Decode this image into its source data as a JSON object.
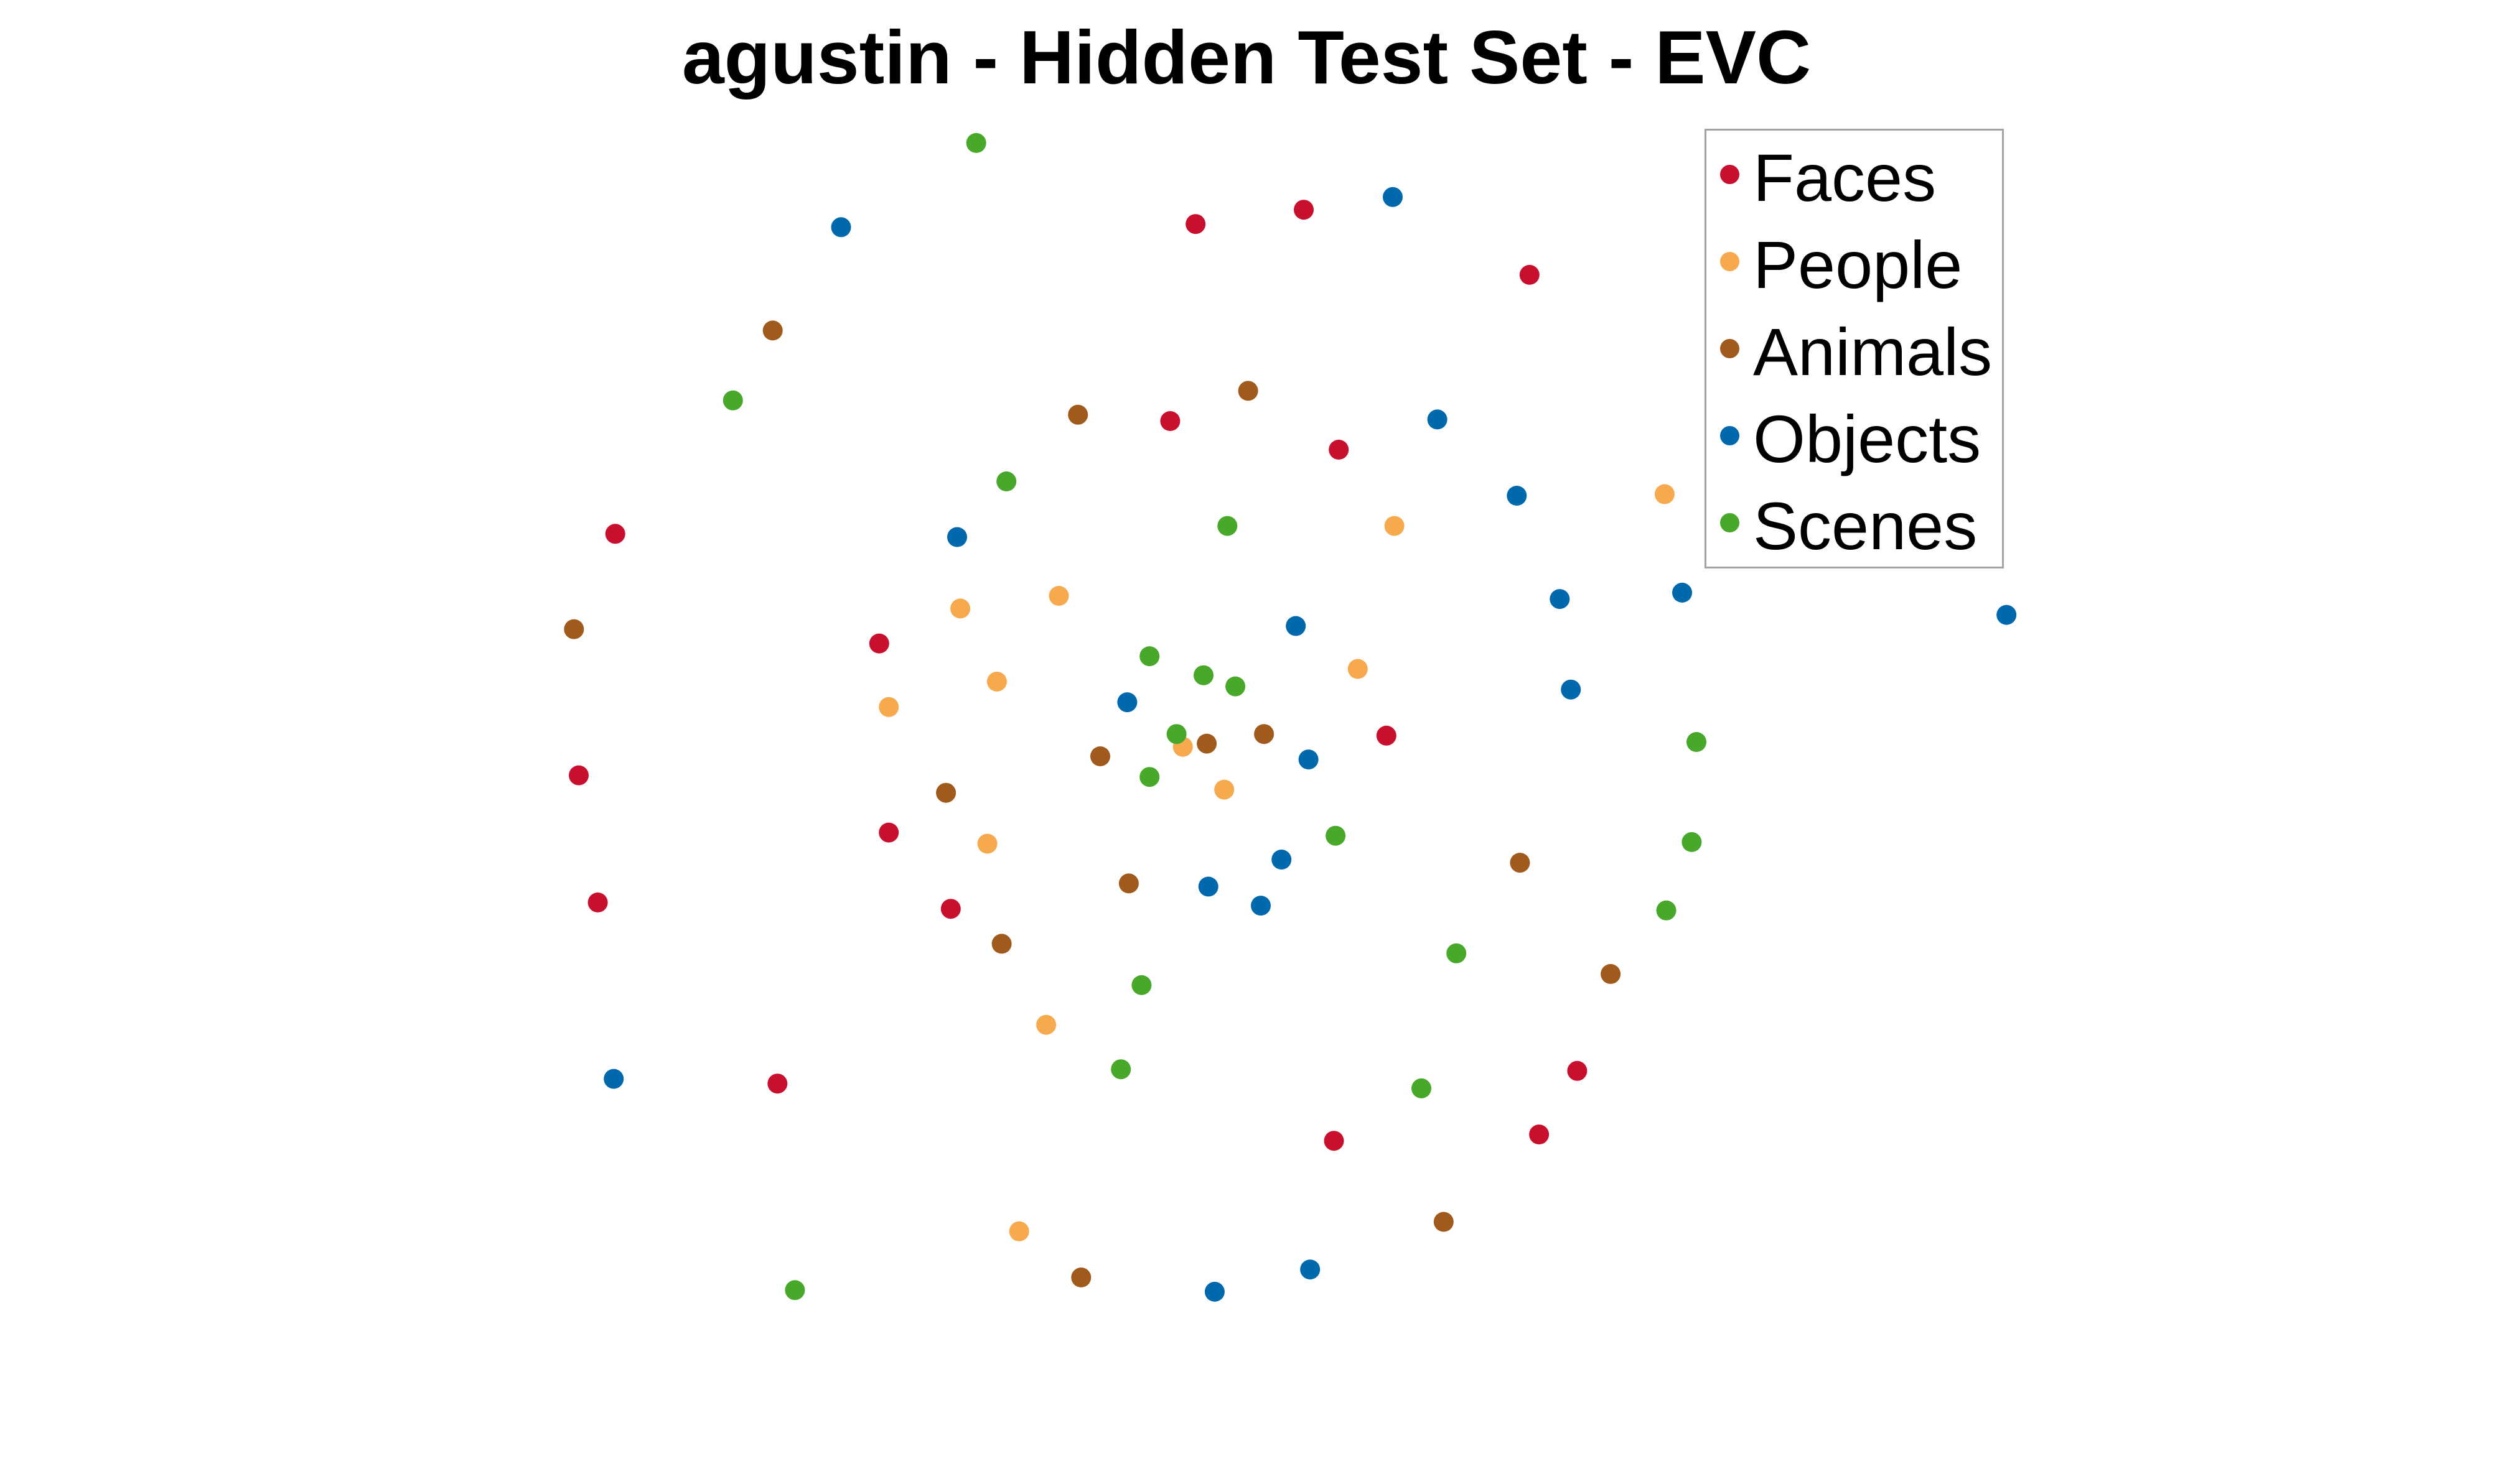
{
  "chart_data": {
    "type": "scatter",
    "title": "agustin - Hidden Test Set - EVC",
    "xlabel": "",
    "ylabel": "",
    "axes_visible": false,
    "grid": false,
    "legend_position": "top-right",
    "series": [
      {
        "name": "Faces",
        "color": "#c8102e",
        "points": [
          [
            752,
            141
          ],
          [
            820,
            132
          ],
          [
            962,
            173
          ],
          [
            736,
            265
          ],
          [
            842,
            283
          ],
          [
            387,
            336
          ],
          [
            553,
            405
          ],
          [
            872,
            463
          ],
          [
            364,
            488
          ],
          [
            559,
            524
          ],
          [
            376,
            568
          ],
          [
            598,
            572
          ],
          [
            992,
            674
          ],
          [
            489,
            682
          ],
          [
            968,
            714
          ],
          [
            839,
            718
          ]
        ]
      },
      {
        "name": "People",
        "color": "#f7a94e",
        "points": [
          [
            1047,
            311
          ],
          [
            877,
            331
          ],
          [
            666,
            375
          ],
          [
            604,
            383
          ],
          [
            854,
            421
          ],
          [
            627,
            429
          ],
          [
            559,
            445
          ],
          [
            744,
            470
          ],
          [
            770,
            497
          ],
          [
            621,
            531
          ],
          [
            658,
            645
          ],
          [
            641,
            775
          ]
        ]
      },
      {
        "name": "Animals",
        "color": "#a05a1c",
        "points": [
          [
            486,
            208
          ],
          [
            785,
            246
          ],
          [
            678,
            261
          ],
          [
            361,
            396
          ],
          [
            795,
            462
          ],
          [
            759,
            468
          ],
          [
            692,
            476
          ],
          [
            595,
            499
          ],
          [
            956,
            543
          ],
          [
            710,
            556
          ],
          [
            630,
            594
          ],
          [
            1013,
            613
          ],
          [
            908,
            769
          ],
          [
            680,
            804
          ]
        ]
      },
      {
        "name": "Objects",
        "color": "#0068ad",
        "points": [
          [
            529,
            143
          ],
          [
            876,
            124
          ],
          [
            904,
            264
          ],
          [
            954,
            312
          ],
          [
            602,
            338
          ],
          [
            1058,
            373
          ],
          [
            981,
            377
          ],
          [
            1262,
            387
          ],
          [
            815,
            394
          ],
          [
            988,
            434
          ],
          [
            709,
            442
          ],
          [
            823,
            478
          ],
          [
            806,
            541
          ],
          [
            760,
            558
          ],
          [
            793,
            570
          ],
          [
            386,
            679
          ],
          [
            824,
            799
          ],
          [
            764,
            813
          ]
        ]
      },
      {
        "name": "Scenes",
        "color": "#47a82a",
        "points": [
          [
            614,
            90
          ],
          [
            461,
            252
          ],
          [
            633,
            303
          ],
          [
            772,
            331
          ],
          [
            723,
            413
          ],
          [
            757,
            425
          ],
          [
            777,
            432
          ],
          [
            740,
            462
          ],
          [
            1067,
            467
          ],
          [
            723,
            489
          ],
          [
            840,
            526
          ],
          [
            1064,
            530
          ],
          [
            1048,
            573
          ],
          [
            916,
            600
          ],
          [
            718,
            620
          ],
          [
            705,
            673
          ],
          [
            894,
            685
          ],
          [
            500,
            812
          ]
        ]
      }
    ]
  }
}
